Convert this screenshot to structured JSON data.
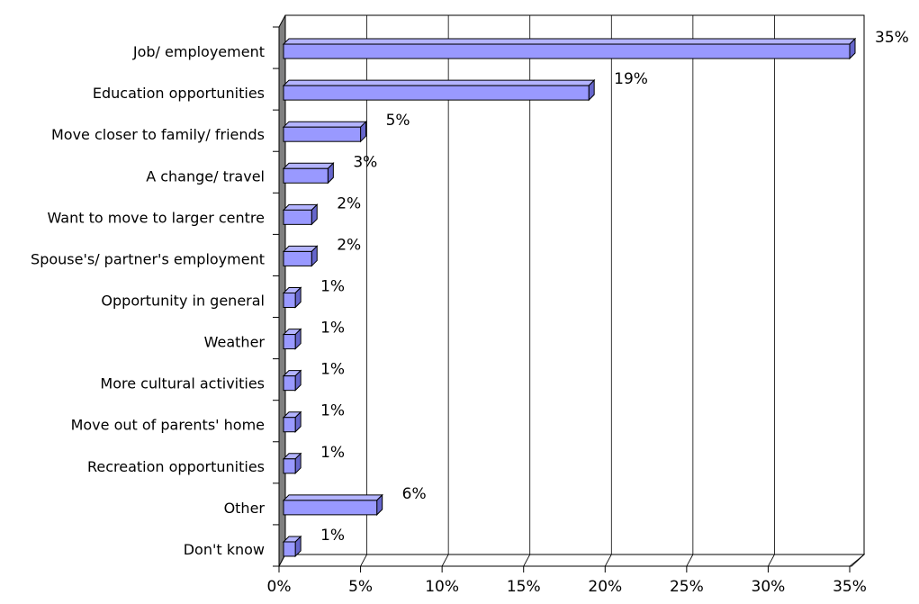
{
  "chart_data": {
    "type": "bar",
    "orientation": "horizontal",
    "three_d": true,
    "categories": [
      "Job/ employement",
      "Education opportunities",
      "Move closer to family/ friends",
      "A change/ travel",
      "Want to move to larger centre",
      "Spouse's/ partner's employment",
      "Opportunity in general",
      "Weather",
      "More cultural activities",
      "Move out of parents' home",
      "Recreation opportunities",
      "Other",
      "Don't know"
    ],
    "values": [
      35,
      19,
      5,
      3,
      2,
      2,
      1,
      1,
      1,
      1,
      1,
      6,
      1
    ],
    "data_labels": [
      "35%",
      "19%",
      "5%",
      "3%",
      "2%",
      "2%",
      "1%",
      "1%",
      "1%",
      "1%",
      "1%",
      "6%",
      "1%"
    ],
    "x_ticks": [
      "0%",
      "5%",
      "10%",
      "15%",
      "20%",
      "25%",
      "30%",
      "35%"
    ],
    "xlim": [
      0,
      35
    ],
    "grid": "vertical",
    "bar_color": "#9999ff",
    "wall_color": "#808080"
  }
}
